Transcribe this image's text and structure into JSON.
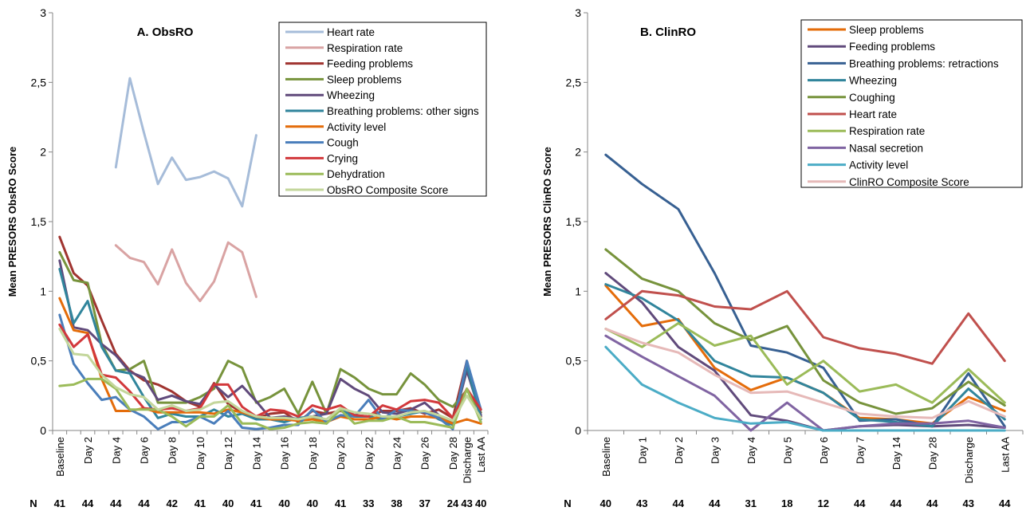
{
  "chart_data": [
    {
      "type": "line",
      "title": "A. ObsRO",
      "ylabel": "Mean PRESORS ObsRO Score",
      "xlabel": "",
      "ylim": [
        0,
        3
      ],
      "y_ticks": [
        "0",
        "0,5",
        "1",
        "1,5",
        "2",
        "2,5",
        "3"
      ],
      "x_tick_labels": [
        "Baseline",
        "",
        "Day 2",
        "",
        "Day 4",
        "",
        "Day 6",
        "",
        "Day 8",
        "",
        "Day 10",
        "",
        "Day 12",
        "",
        "Day 14",
        "",
        "Day 16",
        "",
        "Day 18",
        "",
        "Day 20",
        "",
        "Day 22",
        "",
        "Day 24",
        "",
        "Day 26",
        "",
        "Day 28",
        "Discharge",
        "Last AA"
      ],
      "n_prefix": "N",
      "n_values": [
        "41",
        "44",
        "44",
        "44",
        "42",
        "41",
        "40",
        "41",
        "40",
        "40",
        "41",
        "33",
        "38",
        "37",
        "24",
        "43",
        "40"
      ],
      "legend_position": "top-right",
      "gridlines": false,
      "series": [
        {
          "name": "Heart rate",
          "color": "#a6bcd9",
          "values": [
            null,
            null,
            null,
            null,
            1.89,
            2.53,
            2.14,
            1.77,
            1.96,
            1.8,
            1.82,
            1.86,
            1.81,
            1.61,
            2.12,
            null,
            null,
            null,
            null,
            null,
            null,
            null,
            null,
            null,
            null,
            null,
            null,
            null,
            null,
            null,
            null
          ]
        },
        {
          "name": "Respiration rate",
          "color": "#d9a3a3",
          "values": [
            null,
            null,
            null,
            null,
            1.33,
            1.24,
            1.21,
            1.05,
            1.3,
            1.06,
            0.93,
            1.07,
            1.35,
            1.28,
            0.96,
            null,
            null,
            null,
            null,
            null,
            null,
            null,
            null,
            null,
            null,
            null,
            null,
            null,
            null,
            null,
            null
          ]
        },
        {
          "name": "Feeding problems",
          "color": "#a03430",
          "values": [
            1.39,
            1.13,
            1.04,
            0.79,
            0.55,
            0.43,
            0.36,
            0.33,
            0.28,
            0.21,
            0.17,
            0.34,
            0.19,
            0.13,
            0.09,
            0.12,
            0.13,
            0.06,
            0.14,
            0.12,
            0.14,
            0.11,
            0.1,
            0.14,
            0.14,
            0.16,
            0.12,
            0.15,
            0.09,
            0.5,
            0.1
          ]
        },
        {
          "name": "Sleep problems",
          "color": "#77933c",
          "values": [
            1.28,
            1.08,
            1.06,
            0.62,
            0.43,
            0.44,
            0.5,
            0.2,
            0.2,
            0.2,
            0.24,
            0.3,
            0.5,
            0.45,
            0.2,
            0.24,
            0.3,
            0.12,
            0.35,
            0.12,
            0.44,
            0.38,
            0.3,
            0.26,
            0.26,
            0.41,
            0.33,
            0.22,
            0.17,
            0.29,
            0.13
          ]
        },
        {
          "name": "Wheezing",
          "color": "#604a7b",
          "values": [
            1.22,
            0.74,
            0.72,
            0.62,
            0.54,
            0.42,
            0.38,
            0.22,
            0.25,
            0.21,
            0.19,
            0.33,
            0.24,
            0.32,
            0.21,
            0.09,
            0.1,
            0.08,
            0.1,
            0.12,
            0.37,
            0.3,
            0.25,
            0.13,
            0.12,
            0.15,
            0.2,
            0.11,
            0.05,
            0.43,
            0.11
          ]
        },
        {
          "name": "Breathing problems: other signs",
          "color": "#31859c",
          "values": [
            1.16,
            0.77,
            0.93,
            0.6,
            0.43,
            0.41,
            0.24,
            0.09,
            0.12,
            0.1,
            0.1,
            0.15,
            0.1,
            0.12,
            0.08,
            0.08,
            0.06,
            0.09,
            0.1,
            0.05,
            0.15,
            0.1,
            0.1,
            0.08,
            0.1,
            0.12,
            0.14,
            0.08,
            0.04,
            0.47,
            0.08
          ]
        },
        {
          "name": "Activity level",
          "color": "#e46c0a",
          "values": [
            0.95,
            0.72,
            0.7,
            0.37,
            0.14,
            0.14,
            0.16,
            0.13,
            0.13,
            0.13,
            0.13,
            0.12,
            0.15,
            0.13,
            0.1,
            0.08,
            0.08,
            0.07,
            0.08,
            0.06,
            0.1,
            0.08,
            0.08,
            0.1,
            0.08,
            0.1,
            0.1,
            0.09,
            0.05,
            0.08,
            0.05
          ]
        },
        {
          "name": "Cough",
          "color": "#4a7ebb",
          "values": [
            0.83,
            0.48,
            0.34,
            0.22,
            0.24,
            0.15,
            0.1,
            0.01,
            0.06,
            0.06,
            0.1,
            0.05,
            0.14,
            0.02,
            0.01,
            0.02,
            0.04,
            0.04,
            0.15,
            0.06,
            0.11,
            0.1,
            0.22,
            0.08,
            0.15,
            0.14,
            0.13,
            0.09,
            0.01,
            0.5,
            0.15
          ]
        },
        {
          "name": "Crying",
          "color": "#d2383b",
          "values": [
            0.76,
            0.6,
            0.69,
            0.4,
            0.38,
            0.28,
            0.16,
            0.15,
            0.16,
            0.14,
            0.16,
            0.33,
            0.33,
            0.17,
            0.1,
            0.15,
            0.14,
            0.1,
            0.18,
            0.15,
            0.18,
            0.11,
            0.1,
            0.18,
            0.15,
            0.21,
            0.22,
            0.2,
            0.09,
            0.3,
            0.15
          ]
        },
        {
          "name": "Dehydration",
          "color": "#9bbb59",
          "values": [
            0.32,
            0.33,
            0.37,
            0.37,
            0.3,
            0.15,
            0.15,
            0.15,
            0.1,
            0.03,
            0.1,
            0.1,
            0.18,
            0.05,
            0.05,
            0.01,
            0.02,
            0.05,
            0.06,
            0.05,
            0.15,
            0.05,
            0.07,
            0.07,
            0.1,
            0.06,
            0.06,
            0.04,
            0.02,
            0.3,
            0.06
          ]
        },
        {
          "name": "ObsRO Composite Score",
          "color": "#c3d69b",
          "values": [
            0.73,
            0.55,
            0.54,
            0.4,
            0.31,
            0.26,
            0.24,
            0.15,
            0.18,
            0.14,
            0.15,
            0.2,
            0.21,
            0.14,
            0.1,
            0.09,
            0.09,
            0.08,
            0.1,
            0.08,
            0.16,
            0.13,
            0.12,
            0.1,
            0.1,
            0.13,
            0.14,
            0.11,
            0.07,
            0.25,
            0.09
          ]
        }
      ]
    },
    {
      "type": "line",
      "title": "B. ClinRO",
      "ylabel": "Mean PRESORS ClinRO Score",
      "xlabel": "",
      "ylim": [
        0,
        3
      ],
      "y_ticks": [
        "0",
        "0,5",
        "1",
        "1,5",
        "2",
        "2,5",
        "3"
      ],
      "categories": [
        "Baseline",
        "Day 1",
        "Day 2",
        "Day 3",
        "Day 4",
        "Day 5",
        "Day 6",
        "Day 7",
        "Day 14",
        "Day 28",
        "Discharge",
        "Last AA"
      ],
      "n_prefix": "N",
      "n_values": [
        "40",
        "43",
        "44",
        "44",
        "31",
        "18",
        "12",
        "44",
        "44",
        "44",
        "43",
        "44"
      ],
      "legend_position": "top-right",
      "gridlines": false,
      "series": [
        {
          "name": "Sleep problems",
          "color": "#e46c0a",
          "values": [
            1.04,
            0.75,
            0.8,
            0.45,
            0.29,
            0.38,
            0.27,
            0.09,
            0.08,
            0.05,
            0.24,
            0.14
          ]
        },
        {
          "name": "Feeding problems",
          "color": "#604a7b",
          "values": [
            1.13,
            0.92,
            0.6,
            0.43,
            0.11,
            0.07,
            0.0,
            0.03,
            0.04,
            0.03,
            0.04,
            0.02
          ]
        },
        {
          "name": "Breathing problems: retractions",
          "color": "#376092",
          "values": [
            1.98,
            1.77,
            1.59,
            1.13,
            0.61,
            0.56,
            0.45,
            0.07,
            0.08,
            0.03,
            0.41,
            0.03
          ]
        },
        {
          "name": "Wheezing",
          "color": "#31859c",
          "values": [
            1.05,
            0.95,
            0.79,
            0.5,
            0.39,
            0.38,
            0.27,
            0.08,
            0.06,
            0.03,
            0.3,
            0.08
          ]
        },
        {
          "name": "Coughing",
          "color": "#77933c",
          "values": [
            1.3,
            1.09,
            1.0,
            0.77,
            0.65,
            0.75,
            0.36,
            0.2,
            0.12,
            0.16,
            0.35,
            0.18
          ]
        },
        {
          "name": "Heart rate",
          "color": "#c0504d",
          "values": [
            0.8,
            1.0,
            0.97,
            0.89,
            0.87,
            1.0,
            0.67,
            0.59,
            0.55,
            0.48,
            0.84,
            0.5
          ]
        },
        {
          "name": "Respiration rate",
          "color": "#9bbb59",
          "values": [
            0.73,
            0.6,
            0.77,
            0.61,
            0.68,
            0.33,
            0.5,
            0.28,
            0.33,
            0.2,
            0.44,
            0.2
          ]
        },
        {
          "name": "Nasal secretion",
          "color": "#8064a2",
          "values": [
            0.68,
            0.53,
            0.39,
            0.25,
            0.0,
            0.2,
            0.0,
            0.03,
            0.05,
            0.05,
            0.07,
            0.02
          ]
        },
        {
          "name": "Activity level",
          "color": "#4bacc6",
          "values": [
            0.6,
            0.33,
            0.2,
            0.09,
            0.05,
            0.06,
            0.0,
            0.0,
            0.0,
            0.0,
            0.0,
            0.0
          ]
        },
        {
          "name": "ClinRO Composite Score",
          "color": "#e6b9b8",
          "values": [
            0.73,
            0.63,
            0.56,
            0.4,
            0.27,
            0.28,
            0.2,
            0.12,
            0.1,
            0.09,
            0.21,
            0.1
          ]
        }
      ]
    }
  ]
}
